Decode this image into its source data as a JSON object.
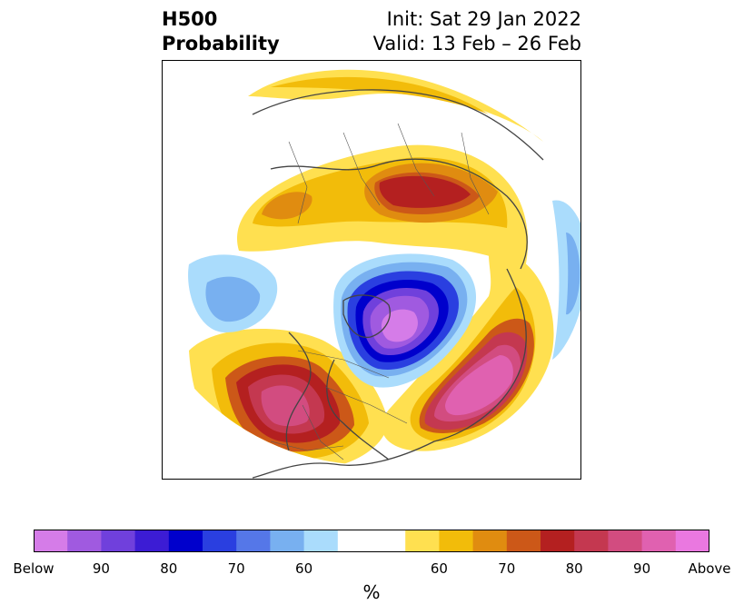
{
  "header": {
    "title_line1": "H500",
    "title_line2": "Probability",
    "init_text": "Init: Sat 29 Jan 2022",
    "valid_text": "Valid: 13 Feb – 26 Feb"
  },
  "colorbar": {
    "label": "%",
    "colors": [
      "#d57ce8",
      "#a05ae0",
      "#7040dc",
      "#3c1cd4",
      "#0000cc",
      "#2a3fe0",
      "#5577e8",
      "#78b0f0",
      "#aadcfc",
      "#ffffff",
      "#ffffff",
      "#ffe050",
      "#f2bc0a",
      "#e08c10",
      "#cc5818",
      "#b42020",
      "#c43850",
      "#d24c80",
      "#e061b0",
      "#ea78e0"
    ],
    "ticks": [
      "Below",
      "90",
      "80",
      "70",
      "60",
      "60",
      "70",
      "80",
      "90",
      "Above"
    ]
  },
  "palette": {
    "above_low": "#ffe050",
    "above_mid": "#f2bc0a",
    "above_orange": "#e08c10",
    "above_red": "#b42020",
    "above_high": "#e061b0",
    "below_light": "#aadcfc",
    "below_mid": "#78b0f0",
    "below_blue": "#2a3fe0",
    "below_high": "#a05ae0"
  }
}
